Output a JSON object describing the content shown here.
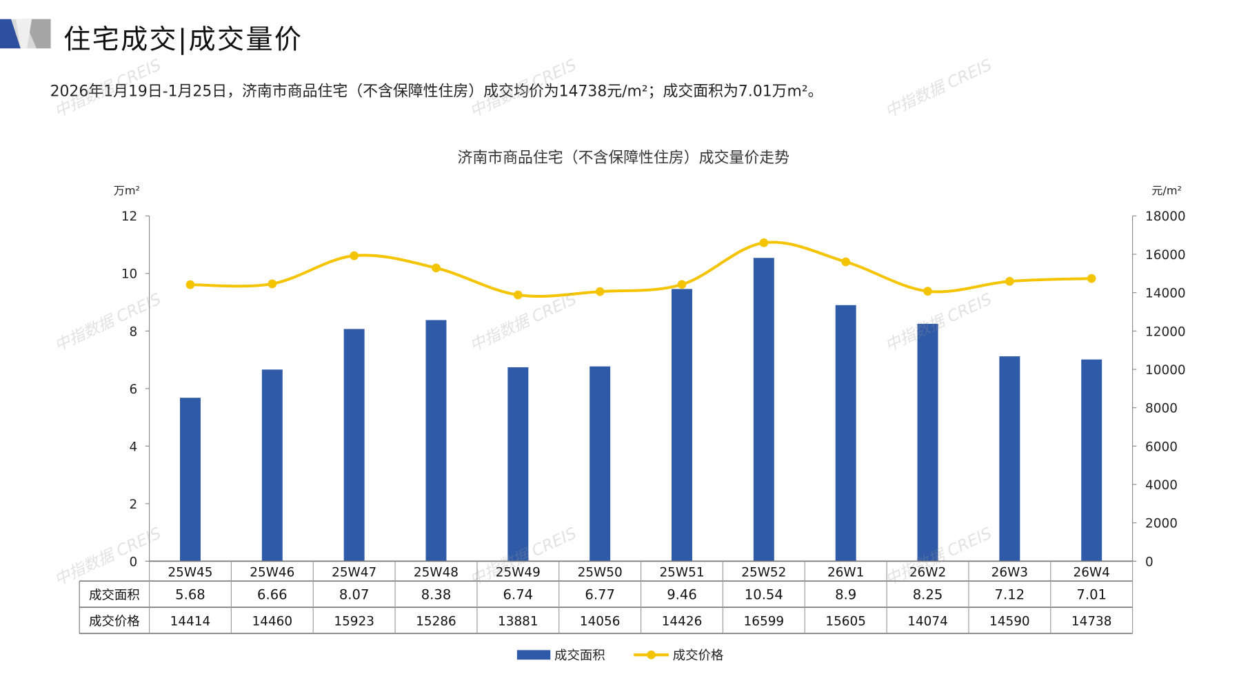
{
  "header": {
    "title": "住宅成交|成交量价",
    "summary": "2026年1月19日-1月25日，济南市商品住宅（不含保障性住房）成交均价为14738元/m²；成交面积为7.01万m²。",
    "watermark": "中指数据 CREIS"
  },
  "colors": {
    "bar": "#2E5AA8",
    "line": "#F5C400",
    "logo_blue": "#2E4E9E",
    "logo_gray": "#BFBFBF"
  },
  "chart_data": {
    "type": "bar+line",
    "title": "济南市商品住宅（不含保障性住房）成交量价走势",
    "categories": [
      "25W45",
      "25W46",
      "25W47",
      "25W48",
      "25W49",
      "25W50",
      "25W51",
      "25W52",
      "26W1",
      "26W2",
      "26W3",
      "26W4"
    ],
    "series": [
      {
        "name": "成交面积",
        "type": "bar",
        "axis": "left",
        "values": [
          5.68,
          6.66,
          8.07,
          8.38,
          6.74,
          6.77,
          9.46,
          10.54,
          8.9,
          8.25,
          7.12,
          7.01
        ],
        "labels": [
          "5.68",
          "6.66",
          "8.07",
          "8.38",
          "6.74",
          "6.77",
          "9.46",
          "10.54",
          "8.9",
          "8.25",
          "7.12",
          "7.01"
        ]
      },
      {
        "name": "成交价格",
        "type": "line",
        "axis": "right",
        "values": [
          14414,
          14460,
          15923,
          15286,
          13881,
          14056,
          14426,
          16599,
          15605,
          14074,
          14590,
          14738
        ],
        "labels": [
          "14414",
          "14460",
          "15923",
          "15286",
          "13881",
          "14056",
          "14426",
          "16599",
          "15605",
          "14074",
          "14590",
          "14738"
        ]
      }
    ],
    "ylabel_left": "万m²",
    "ylabel_right": "元/m²",
    "ylim_left": [
      0,
      12
    ],
    "ylim_right": [
      0,
      18000
    ],
    "yticks_left": [
      "0",
      "2",
      "4",
      "6",
      "8",
      "10",
      "12"
    ],
    "yticks_right": [
      "0",
      "2000",
      "4000",
      "6000",
      "8000",
      "10000",
      "12000",
      "14000",
      "16000",
      "18000"
    ],
    "legend_position": "bottom",
    "grid": false,
    "data_table": true
  }
}
